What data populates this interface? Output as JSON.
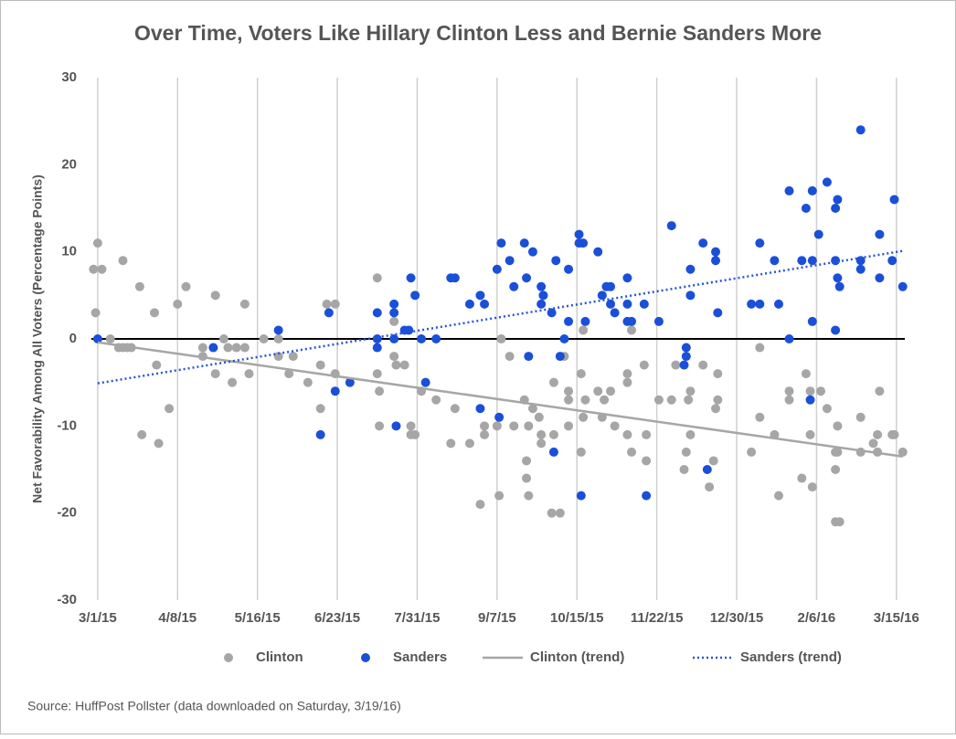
{
  "chart_data": {
    "type": "scatter",
    "title": "Over Time, Voters Like Hillary Clinton Less and Bernie Sanders More",
    "y_label": "Net Favorability Among All Voters (Percentage Points)",
    "source": "Source: HuffPost Pollster (data downloaded on Saturday, 3/19/16)",
    "xlim": [
      "2/26/15",
      "3/19/16"
    ],
    "xticks": [
      "3/1/15",
      "4/8/15",
      "5/16/15",
      "6/23/15",
      "7/31/15",
      "9/7/15",
      "10/15/15",
      "11/22/15",
      "12/30/15",
      "2/6/16",
      "3/15/16"
    ],
    "ylim": [
      -30,
      30
    ],
    "yticks": [
      -30,
      -20,
      -10,
      0,
      10,
      20,
      30
    ],
    "grid": "x",
    "legend": "bottom",
    "series": [
      {
        "name": "Clinton",
        "type": "scatter",
        "color": "#a6a6a6",
        "x": [
          "2/27/15",
          "2/28/15",
          "3/1/15",
          "3/3/15",
          "3/7/15",
          "3/11/15",
          "3/13/15",
          "3/15/15",
          "3/17/15",
          "3/13/15",
          "3/21/15",
          "3/22/15",
          "3/28/15",
          "3/29/15",
          "3/30/15",
          "4/4/15",
          "4/8/15",
          "4/12/15",
          "4/20/15",
          "4/20/15",
          "4/26/15",
          "4/26/15",
          "4/30/15",
          "5/2/15",
          "5/4/15",
          "5/6/15",
          "5/10/15",
          "5/10/15",
          "5/12/15",
          "5/19/15",
          "5/26/15",
          "5/26/15",
          "5/31/15",
          "6/2/15",
          "6/9/15",
          "6/15/15",
          "6/15/15",
          "6/18/15",
          "6/22/15",
          "6/22/15",
          "7/12/15",
          "7/12/15",
          "7/13/15",
          "7/13/15",
          "7/20/15",
          "7/20/15",
          "7/21/15",
          "7/25/15",
          "7/28/15",
          "7/28/15",
          "7/30/15",
          "8/2/15",
          "8/9/15",
          "8/16/15",
          "8/18/15",
          "8/25/15",
          "8/30/15",
          "9/1/15",
          "9/1/15",
          "9/7/15",
          "9/8/15",
          "9/9/15",
          "9/13/15",
          "9/15/15",
          "9/20/15",
          "9/21/15",
          "9/21/15",
          "9/22/15",
          "9/22/15",
          "9/24/15",
          "9/27/15",
          "9/28/15",
          "9/28/15",
          "10/3/15",
          "10/4/15",
          "10/4/15",
          "10/7/15",
          "10/9/15",
          "10/11/15",
          "10/11/15",
          "10/11/15",
          "10/17/15",
          "10/17/15",
          "10/18/15",
          "10/19/15",
          "10/18/15",
          "10/25/15",
          "10/27/15",
          "10/28/15",
          "10/31/15",
          "11/2/15",
          "11/8/15",
          "11/8/15",
          "11/8/15",
          "11/10/15",
          "11/10/15",
          "11/16/15",
          "11/17/15",
          "11/17/15",
          "11/23/15",
          "11/29/15",
          "12/1/15",
          "12/5/15",
          "12/6/15",
          "12/7/15",
          "12/8/15",
          "12/8/15",
          "12/14/15",
          "12/17/15",
          "12/19/15",
          "12/21/15",
          "12/20/15",
          "12/21/15",
          "1/6/16",
          "1/10/16",
          "1/10/16",
          "1/17/16",
          "1/19/16",
          "1/24/16",
          "1/24/16",
          "1/30/16",
          "2/1/16",
          "2/3/16",
          "2/3/16",
          "2/4/16",
          "2/8/16",
          "2/11/16",
          "2/15/16",
          "2/15/16",
          "2/15/16",
          "2/17/16",
          "2/16/16",
          "2/16/16",
          "2/27/16",
          "2/27/16",
          "3/4/16",
          "3/6/16",
          "3/6/16",
          "3/7/16",
          "3/13/16",
          "3/14/16",
          "3/18/16"
        ],
        "values": [
          8,
          3,
          11,
          8,
          0,
          -1,
          -1,
          -1,
          -1,
          9,
          6,
          -11,
          3,
          -3,
          -12,
          -8,
          4,
          6,
          -1,
          -2,
          5,
          -4,
          0,
          -1,
          -5,
          -1,
          4,
          -1,
          -4,
          0,
          -2,
          0,
          -4,
          -2,
          -5,
          -3,
          -8,
          4,
          4,
          -4,
          7,
          -4,
          -6,
          -10,
          2,
          -2,
          -3,
          -3,
          -10,
          -11,
          -11,
          -6,
          -7,
          -12,
          -8,
          -12,
          -19,
          -10,
          -11,
          -10,
          -18,
          0,
          -2,
          -10,
          -7,
          -14,
          -16,
          -18,
          -10,
          -8,
          -9,
          -11,
          -12,
          -20,
          -5,
          -11,
          -20,
          -2,
          -6,
          -7,
          -10,
          -4,
          -13,
          -9,
          -7,
          1,
          -6,
          -9,
          -7,
          -6,
          -10,
          -4,
          -5,
          -11,
          -13,
          1,
          -3,
          -11,
          -14,
          -7,
          -7,
          -3,
          -15,
          -13,
          -7,
          -6,
          -11,
          -3,
          -17,
          -14,
          -4,
          -8,
          -7,
          -13,
          -9,
          -1,
          -11,
          -18,
          -6,
          -7,
          -16,
          -4,
          -11,
          -6,
          -17,
          -6,
          -8,
          -13,
          -15,
          -21,
          -21,
          -10,
          -13,
          -9,
          -13,
          -12,
          -13,
          -11,
          -6,
          -11,
          -11,
          -13
        ]
      },
      {
        "name": "Sanders",
        "type": "scatter",
        "color": "#1a4fd8",
        "x": [
          "3/1/15",
          "4/25/15",
          "5/26/15",
          "6/15/15",
          "6/19/15",
          "6/22/15",
          "6/29/15",
          "7/12/15",
          "7/12/15",
          "7/12/15",
          "7/20/15",
          "7/20/15",
          "7/20/15",
          "7/21/15",
          "7/25/15",
          "7/27/15",
          "7/28/15",
          "7/30/15",
          "8/2/15",
          "8/4/15",
          "8/9/15",
          "8/16/15",
          "8/18/15",
          "8/25/15",
          "8/30/15",
          "8/30/15",
          "9/1/15",
          "9/7/15",
          "9/8/15",
          "9/9/15",
          "9/13/15",
          "9/15/15",
          "9/20/15",
          "9/21/15",
          "9/22/15",
          "9/24/15",
          "9/28/15",
          "9/28/15",
          "9/29/15",
          "10/3/15",
          "10/4/15",
          "10/5/15",
          "10/7/15",
          "10/9/15",
          "10/11/15",
          "10/11/15",
          "10/16/15",
          "10/16/15",
          "10/18/15",
          "10/17/15",
          "10/19/15",
          "10/25/15",
          "10/27/15",
          "10/29/15",
          "10/31/15",
          "10/31/15",
          "11/2/15",
          "11/8/15",
          "11/8/15",
          "11/8/15",
          "11/10/15",
          "11/16/15",
          "11/17/15",
          "11/23/15",
          "11/29/15",
          "12/5/15",
          "12/6/15",
          "12/6/15",
          "12/8/15",
          "12/8/15",
          "12/14/15",
          "12/16/15",
          "12/20/15",
          "12/20/15",
          "12/21/15",
          "1/6/16",
          "1/10/16",
          "1/10/16",
          "1/17/16",
          "1/19/16",
          "1/24/16",
          "1/24/16",
          "1/30/16",
          "2/1/16",
          "2/4/16",
          "2/4/16",
          "2/3/16",
          "2/4/16",
          "2/7/16",
          "2/11/16",
          "2/15/16",
          "2/15/16",
          "2/15/16",
          "2/16/16",
          "2/16/16",
          "2/17/16",
          "2/27/16",
          "2/27/16",
          "2/27/16",
          "3/7/16",
          "3/7/16",
          "3/13/16",
          "3/14/16",
          "3/18/16"
        ],
        "values": [
          0,
          -1,
          1,
          -11,
          3,
          -6,
          -5,
          3,
          0,
          -1,
          4,
          3,
          0,
          -10,
          1,
          1,
          7,
          5,
          0,
          -5,
          0,
          7,
          7,
          4,
          5,
          -8,
          4,
          8,
          -9,
          11,
          9,
          6,
          11,
          7,
          -2,
          10,
          4,
          6,
          5,
          3,
          -13,
          9,
          -2,
          0,
          8,
          2,
          12,
          11,
          11,
          -18,
          2,
          10,
          5,
          6,
          6,
          4,
          3,
          7,
          2,
          4,
          2,
          4,
          -18,
          2,
          13,
          -3,
          -2,
          -1,
          8,
          5,
          11,
          -15,
          9,
          10,
          3,
          4,
          11,
          4,
          9,
          4,
          17,
          0,
          9,
          15,
          17,
          9,
          -7,
          2,
          12,
          18,
          15,
          9,
          1,
          16,
          7,
          6,
          24,
          9,
          8,
          12,
          7,
          9,
          16,
          6
        ]
      },
      {
        "name": "Clinton (trend)",
        "type": "line",
        "color": "#a6a6a6",
        "x": [
          "3/1/15",
          "3/18/16"
        ],
        "values": [
          -0.4,
          -13.5
        ]
      },
      {
        "name": "Sanders (trend)",
        "type": "line",
        "style": "dotted",
        "color": "#2a55d6",
        "x": [
          "3/1/15",
          "3/18/16"
        ],
        "values": [
          -5.1,
          10.1
        ]
      }
    ]
  }
}
